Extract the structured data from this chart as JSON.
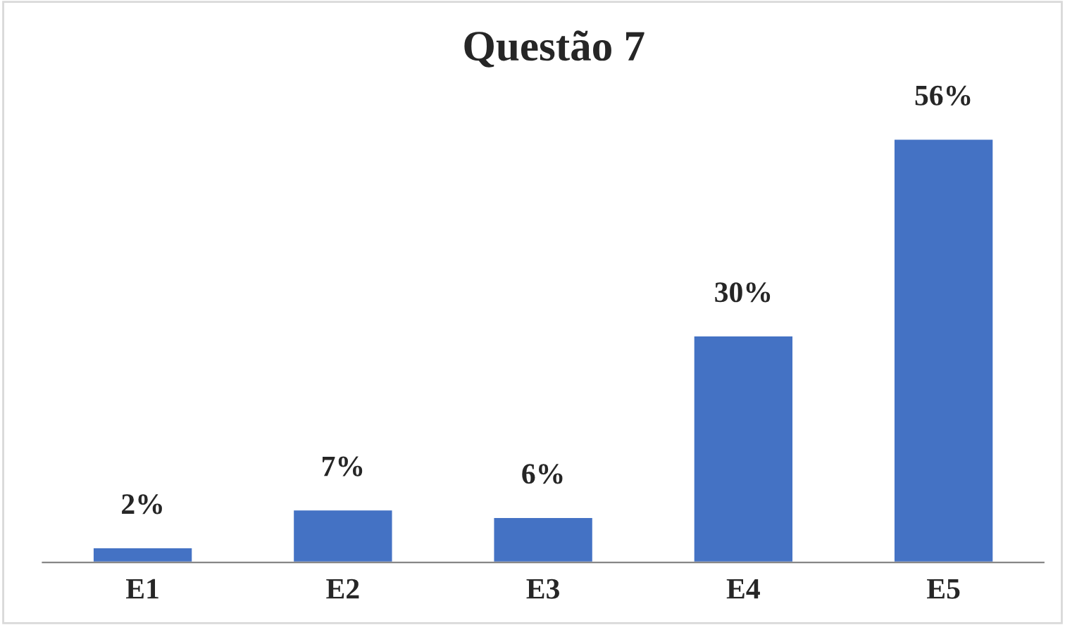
{
  "chart_data": {
    "type": "bar",
    "title": "Questão 7",
    "categories": [
      "E1",
      "E2",
      "E3",
      "E4",
      "E5"
    ],
    "values": [
      2,
      7,
      6,
      30,
      56
    ],
    "value_labels": [
      "2%",
      "7%",
      "6%",
      "30%",
      "56%"
    ],
    "color": "#4472c4",
    "grid": false,
    "legend": false
  }
}
